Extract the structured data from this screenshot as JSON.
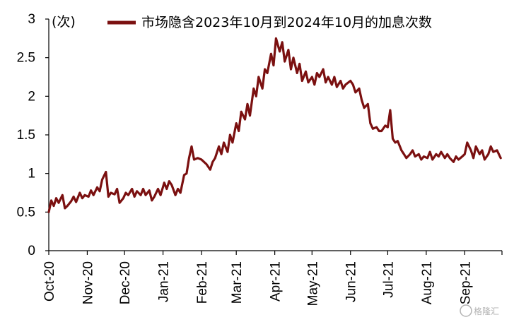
{
  "chart_data": {
    "type": "line",
    "unit_label": "(次)",
    "ylim": [
      0,
      3
    ],
    "yticks": [
      "0",
      "0.5",
      "1",
      "1.5",
      "2",
      "2.5",
      "3"
    ],
    "ytick_values": [
      0,
      0.5,
      1,
      1.5,
      2,
      2.5,
      3
    ],
    "xlim": [
      "2020-10-01",
      "2021-10-01"
    ],
    "x_tick_dates": [
      "2020-10-01",
      "2020-11-01",
      "2020-12-01",
      "2021-01-01",
      "2021-02-01",
      "2021-03-01",
      "2021-04-01",
      "2021-05-01",
      "2021-06-01",
      "2021-07-01",
      "2021-08-01",
      "2021-09-01"
    ],
    "x_tick_labels": [
      "Oct-20",
      "Nov-20",
      "Dec-20",
      "Jan-21",
      "Feb-21",
      "Mar-21",
      "Apr-21",
      "May-21",
      "Jun-21",
      "Jul-21",
      "Aug-21",
      "Sep-21"
    ],
    "grid": false,
    "legend_position": "top",
    "series": [
      {
        "name": "市场隐含2023年10月到2024年10月的加息次数",
        "color": "#7B1010",
        "points": [
          [
            "2020-10-01",
            0.5
          ],
          [
            "2020-10-03",
            0.65
          ],
          [
            "2020-10-05",
            0.58
          ],
          [
            "2020-10-07",
            0.68
          ],
          [
            "2020-10-09",
            0.62
          ],
          [
            "2020-10-12",
            0.72
          ],
          [
            "2020-10-14",
            0.55
          ],
          [
            "2020-10-16",
            0.58
          ],
          [
            "2020-10-19",
            0.64
          ],
          [
            "2020-10-21",
            0.7
          ],
          [
            "2020-10-23",
            0.63
          ],
          [
            "2020-10-26",
            0.75
          ],
          [
            "2020-10-28",
            0.68
          ],
          [
            "2020-10-30",
            0.72
          ],
          [
            "2020-11-02",
            0.7
          ],
          [
            "2020-11-04",
            0.78
          ],
          [
            "2020-11-06",
            0.72
          ],
          [
            "2020-11-09",
            0.82
          ],
          [
            "2020-11-11",
            0.77
          ],
          [
            "2020-11-13",
            0.92
          ],
          [
            "2020-11-16",
            1.02
          ],
          [
            "2020-11-18",
            0.7
          ],
          [
            "2020-11-20",
            0.75
          ],
          [
            "2020-11-23",
            0.73
          ],
          [
            "2020-11-25",
            0.8
          ],
          [
            "2020-11-27",
            0.62
          ],
          [
            "2020-11-30",
            0.68
          ],
          [
            "2020-12-02",
            0.75
          ],
          [
            "2020-12-04",
            0.72
          ],
          [
            "2020-12-07",
            0.8
          ],
          [
            "2020-12-09",
            0.7
          ],
          [
            "2020-12-11",
            0.77
          ],
          [
            "2020-12-14",
            0.72
          ],
          [
            "2020-12-16",
            0.8
          ],
          [
            "2020-12-18",
            0.72
          ],
          [
            "2020-12-21",
            0.78
          ],
          [
            "2020-12-23",
            0.65
          ],
          [
            "2020-12-25",
            0.7
          ],
          [
            "2020-12-28",
            0.8
          ],
          [
            "2020-12-30",
            0.72
          ],
          [
            "2021-01-02",
            0.88
          ],
          [
            "2021-01-04",
            0.8
          ],
          [
            "2021-01-06",
            0.9
          ],
          [
            "2021-01-08",
            0.85
          ],
          [
            "2021-01-11",
            0.72
          ],
          [
            "2021-01-13",
            0.8
          ],
          [
            "2021-01-15",
            0.75
          ],
          [
            "2021-01-18",
            0.98
          ],
          [
            "2021-01-20",
            1.0
          ],
          [
            "2021-01-22",
            1.2
          ],
          [
            "2021-01-24",
            1.35
          ],
          [
            "2021-01-26",
            1.18
          ],
          [
            "2021-01-29",
            1.2
          ],
          [
            "2021-02-01",
            1.18
          ],
          [
            "2021-02-03",
            1.15
          ],
          [
            "2021-02-05",
            1.12
          ],
          [
            "2021-02-08",
            1.05
          ],
          [
            "2021-02-10",
            1.15
          ],
          [
            "2021-02-12",
            1.2
          ],
          [
            "2021-02-15",
            1.35
          ],
          [
            "2021-02-17",
            1.25
          ],
          [
            "2021-02-19",
            1.4
          ],
          [
            "2021-02-22",
            1.28
          ],
          [
            "2021-02-24",
            1.5
          ],
          [
            "2021-02-26",
            1.4
          ],
          [
            "2021-03-01",
            1.65
          ],
          [
            "2021-03-03",
            1.55
          ],
          [
            "2021-03-05",
            1.8
          ],
          [
            "2021-03-08",
            1.7
          ],
          [
            "2021-03-10",
            1.9
          ],
          [
            "2021-03-12",
            1.75
          ],
          [
            "2021-03-15",
            2.1
          ],
          [
            "2021-03-17",
            2.0
          ],
          [
            "2021-03-19",
            2.25
          ],
          [
            "2021-03-22",
            2.1
          ],
          [
            "2021-03-24",
            2.35
          ],
          [
            "2021-03-26",
            2.3
          ],
          [
            "2021-03-29",
            2.55
          ],
          [
            "2021-03-31",
            2.4
          ],
          [
            "2021-04-02",
            2.75
          ],
          [
            "2021-04-05",
            2.58
          ],
          [
            "2021-04-07",
            2.7
          ],
          [
            "2021-04-09",
            2.45
          ],
          [
            "2021-04-12",
            2.6
          ],
          [
            "2021-04-14",
            2.35
          ],
          [
            "2021-04-16",
            2.5
          ],
          [
            "2021-04-19",
            2.3
          ],
          [
            "2021-04-21",
            2.42
          ],
          [
            "2021-04-23",
            2.2
          ],
          [
            "2021-04-26",
            2.32
          ],
          [
            "2021-04-28",
            2.18
          ],
          [
            "2021-05-01",
            2.25
          ],
          [
            "2021-05-03",
            2.15
          ],
          [
            "2021-05-05",
            2.3
          ],
          [
            "2021-05-07",
            2.25
          ],
          [
            "2021-05-10",
            2.35
          ],
          [
            "2021-05-12",
            2.18
          ],
          [
            "2021-05-14",
            2.25
          ],
          [
            "2021-05-17",
            2.15
          ],
          [
            "2021-05-19",
            2.25
          ],
          [
            "2021-05-21",
            2.12
          ],
          [
            "2021-05-24",
            2.2
          ],
          [
            "2021-05-26",
            2.1
          ],
          [
            "2021-05-28",
            2.15
          ],
          [
            "2021-06-01",
            2.2
          ],
          [
            "2021-06-03",
            2.15
          ],
          [
            "2021-06-05",
            2.05
          ],
          [
            "2021-06-08",
            2.1
          ],
          [
            "2021-06-10",
            1.95
          ],
          [
            "2021-06-12",
            1.85
          ],
          [
            "2021-06-15",
            1.9
          ],
          [
            "2021-06-17",
            1.65
          ],
          [
            "2021-06-19",
            1.58
          ],
          [
            "2021-06-22",
            1.6
          ],
          [
            "2021-06-24",
            1.55
          ],
          [
            "2021-06-26",
            1.55
          ],
          [
            "2021-06-29",
            1.62
          ],
          [
            "2021-07-01",
            1.6
          ],
          [
            "2021-07-03",
            1.82
          ],
          [
            "2021-07-05",
            1.45
          ],
          [
            "2021-07-07",
            1.4
          ],
          [
            "2021-07-09",
            1.42
          ],
          [
            "2021-07-12",
            1.3
          ],
          [
            "2021-07-14",
            1.25
          ],
          [
            "2021-07-16",
            1.2
          ],
          [
            "2021-07-19",
            1.25
          ],
          [
            "2021-07-21",
            1.3
          ],
          [
            "2021-07-23",
            1.22
          ],
          [
            "2021-07-26",
            1.25
          ],
          [
            "2021-07-28",
            1.18
          ],
          [
            "2021-07-30",
            1.22
          ],
          [
            "2021-08-02",
            1.2
          ],
          [
            "2021-08-04",
            1.28
          ],
          [
            "2021-08-06",
            1.18
          ],
          [
            "2021-08-09",
            1.25
          ],
          [
            "2021-08-11",
            1.22
          ],
          [
            "2021-08-13",
            1.28
          ],
          [
            "2021-08-16",
            1.2
          ],
          [
            "2021-08-18",
            1.25
          ],
          [
            "2021-08-20",
            1.2
          ],
          [
            "2021-08-23",
            1.15
          ],
          [
            "2021-08-25",
            1.22
          ],
          [
            "2021-08-27",
            1.18
          ],
          [
            "2021-08-30",
            1.22
          ],
          [
            "2021-09-01",
            1.25
          ],
          [
            "2021-09-03",
            1.4
          ],
          [
            "2021-09-06",
            1.3
          ],
          [
            "2021-09-08",
            1.2
          ],
          [
            "2021-09-10",
            1.35
          ],
          [
            "2021-09-13",
            1.25
          ],
          [
            "2021-09-15",
            1.3
          ],
          [
            "2021-09-17",
            1.18
          ],
          [
            "2021-09-20",
            1.25
          ],
          [
            "2021-09-22",
            1.35
          ],
          [
            "2021-09-24",
            1.28
          ],
          [
            "2021-09-27",
            1.3
          ],
          [
            "2021-09-30",
            1.2
          ]
        ]
      }
    ]
  },
  "watermark": {
    "text": "格隆汇",
    "icon": "gelonghui-logo-icon"
  }
}
